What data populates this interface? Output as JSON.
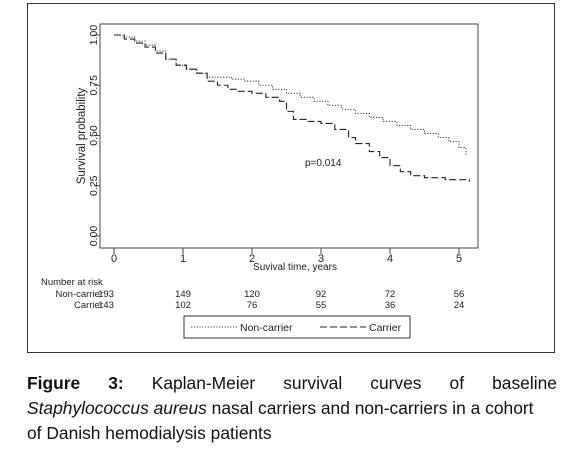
{
  "chart_data": {
    "type": "line",
    "subtype": "kaplan-meier step curves",
    "ylabel": "Survival probability",
    "xlabel": "Suvival time, years",
    "y_ticks": [
      "0.00",
      "0.25",
      "0.50",
      "0.75",
      "1.00"
    ],
    "x_ticks": [
      "0",
      "1",
      "2",
      "3",
      "4",
      "5"
    ],
    "xlim": [
      0,
      5.25
    ],
    "ylim": [
      0,
      1
    ],
    "annotation": "p=0.014",
    "legend_position": "bottom",
    "series": [
      {
        "name": "Non-carrier",
        "style": "dotted",
        "points": [
          [
            0,
            1.0
          ],
          [
            0.15,
            0.99
          ],
          [
            0.3,
            0.97
          ],
          [
            0.45,
            0.95
          ],
          [
            0.6,
            0.92
          ],
          [
            0.75,
            0.88
          ],
          [
            0.9,
            0.85
          ],
          [
            1.05,
            0.83
          ],
          [
            1.2,
            0.81
          ],
          [
            1.35,
            0.79
          ],
          [
            1.5,
            0.79
          ],
          [
            1.7,
            0.78
          ],
          [
            1.9,
            0.77
          ],
          [
            2.1,
            0.75
          ],
          [
            2.3,
            0.73
          ],
          [
            2.5,
            0.71
          ],
          [
            2.7,
            0.69
          ],
          [
            2.9,
            0.67
          ],
          [
            3.1,
            0.65
          ],
          [
            3.3,
            0.63
          ],
          [
            3.5,
            0.61
          ],
          [
            3.7,
            0.59
          ],
          [
            3.9,
            0.57
          ],
          [
            4.1,
            0.55
          ],
          [
            4.3,
            0.53
          ],
          [
            4.5,
            0.51
          ],
          [
            4.7,
            0.49
          ],
          [
            4.85,
            0.47
          ],
          [
            5.0,
            0.44
          ],
          [
            5.1,
            0.4
          ]
        ]
      },
      {
        "name": "Carrier",
        "style": "dashed",
        "points": [
          [
            0,
            1.0
          ],
          [
            0.15,
            0.98
          ],
          [
            0.3,
            0.96
          ],
          [
            0.45,
            0.94
          ],
          [
            0.6,
            0.91
          ],
          [
            0.75,
            0.88
          ],
          [
            0.9,
            0.85
          ],
          [
            1.05,
            0.83
          ],
          [
            1.2,
            0.81
          ],
          [
            1.35,
            0.77
          ],
          [
            1.5,
            0.75
          ],
          [
            1.65,
            0.73
          ],
          [
            1.8,
            0.72
          ],
          [
            2.0,
            0.71
          ],
          [
            2.2,
            0.69
          ],
          [
            2.4,
            0.67
          ],
          [
            2.5,
            0.62
          ],
          [
            2.6,
            0.58
          ],
          [
            2.8,
            0.57
          ],
          [
            3.0,
            0.56
          ],
          [
            3.2,
            0.53
          ],
          [
            3.4,
            0.49
          ],
          [
            3.5,
            0.46
          ],
          [
            3.7,
            0.42
          ],
          [
            3.85,
            0.39
          ],
          [
            4.0,
            0.35
          ],
          [
            4.15,
            0.32
          ],
          [
            4.3,
            0.3
          ],
          [
            4.5,
            0.29
          ],
          [
            4.8,
            0.28
          ],
          [
            5.15,
            0.27
          ]
        ]
      }
    ],
    "risk_table": {
      "title": "Number at risk",
      "rows": [
        {
          "label": "Non-carrier",
          "values": [
            "193",
            "149",
            "120",
            "92",
            "72",
            "56"
          ]
        },
        {
          "label": "Carrier",
          "values": [
            "143",
            "102",
            "76",
            "55",
            "36",
            "24"
          ]
        }
      ]
    }
  },
  "caption": {
    "label": "Figure",
    "number": "3:",
    "line1_words": [
      "Kaplan-Meier",
      "survival",
      "curves",
      "of",
      "baseline"
    ],
    "line2_italic": "Staphylococcus aureus",
    "line2_rest": " nasal carriers and non-carriers in a cohort",
    "line3": "of Danish hemodialysis patients"
  }
}
